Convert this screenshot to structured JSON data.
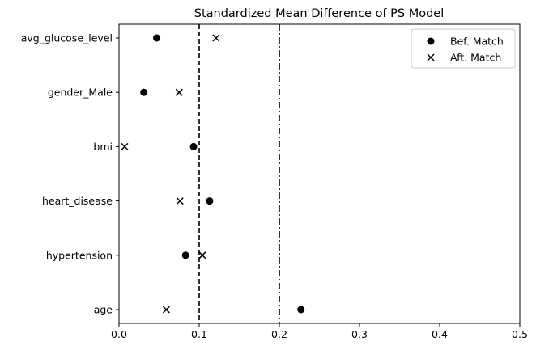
{
  "chart_data": {
    "type": "scatter",
    "title": "Standardized Mean Difference of PS Model",
    "xlabel": "",
    "ylabel": "",
    "xlim": [
      0,
      0.5
    ],
    "xticks": [
      "0.0",
      "0.1",
      "0.2",
      "0.3",
      "0.4",
      "0.5"
    ],
    "categories": [
      "avg_glucose_level",
      "gender_Male",
      "bmi",
      "heart_disease",
      "hypertension",
      "age"
    ],
    "series": [
      {
        "name": "Bef. Match",
        "marker": "circle",
        "color": "#000000",
        "values": [
          0.047,
          0.031,
          0.093,
          0.113,
          0.083,
          0.227
        ]
      },
      {
        "name": "Aft. Match",
        "marker": "x",
        "color": "#000000",
        "values": [
          0.121,
          0.075,
          0.007,
          0.076,
          0.104,
          0.059
        ]
      }
    ],
    "reference_lines": [
      {
        "x": 0.1,
        "style": "dashed"
      },
      {
        "x": 0.2,
        "style": "dashdot"
      }
    ],
    "grid": false,
    "legend_position": "top-right"
  }
}
